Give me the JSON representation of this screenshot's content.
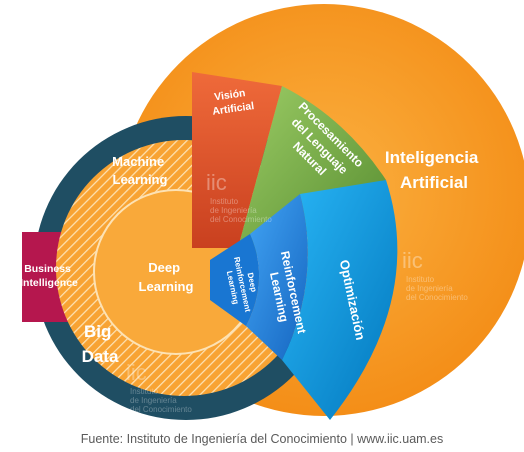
{
  "labels": {
    "ia_line1": "Inteligencia",
    "ia_line2": "Artificial",
    "big_data_line1": "Big",
    "big_data_line2": "Data",
    "bi_line1": "Business",
    "bi_line2": "Intelligence",
    "ml_line1": "Machine",
    "ml_line2": "Learning",
    "dl_line1": "Deep",
    "dl_line2": "Learning",
    "vision_line1": "Visión",
    "vision_line2": "Artificial",
    "pln_line1": "Procesamiento",
    "pln_line2": "del Lenguaje",
    "pln_line3": "Natural",
    "rl_line1": "Reinforcement",
    "rl_line2": "Learning",
    "drl_line1": "Deep",
    "drl_line2": "Reinforcement",
    "drl_line3": "Learning",
    "opt": "Optimización"
  },
  "watermark": {
    "logo": "iic",
    "line1": "Instituto",
    "line2": "de Ingeniería",
    "line3": "del Conocimiento"
  },
  "source": "Fuente: Instituto de Ingeniería del Conocimiento | www.iic.uam.es",
  "colors": {
    "inteligencia_artificial": "#f7941d",
    "big_data": "#1f4e63",
    "business_intelligence": "#b5174e",
    "machine_learning": "#f7a02f",
    "deep_learning": "#f9a93a",
    "vision_artificial": "#e4552e",
    "procesamiento_lenguaje": "#7cb342",
    "reinforcement_learning": "#1e88e5",
    "optimizacion": "#0095da"
  }
}
